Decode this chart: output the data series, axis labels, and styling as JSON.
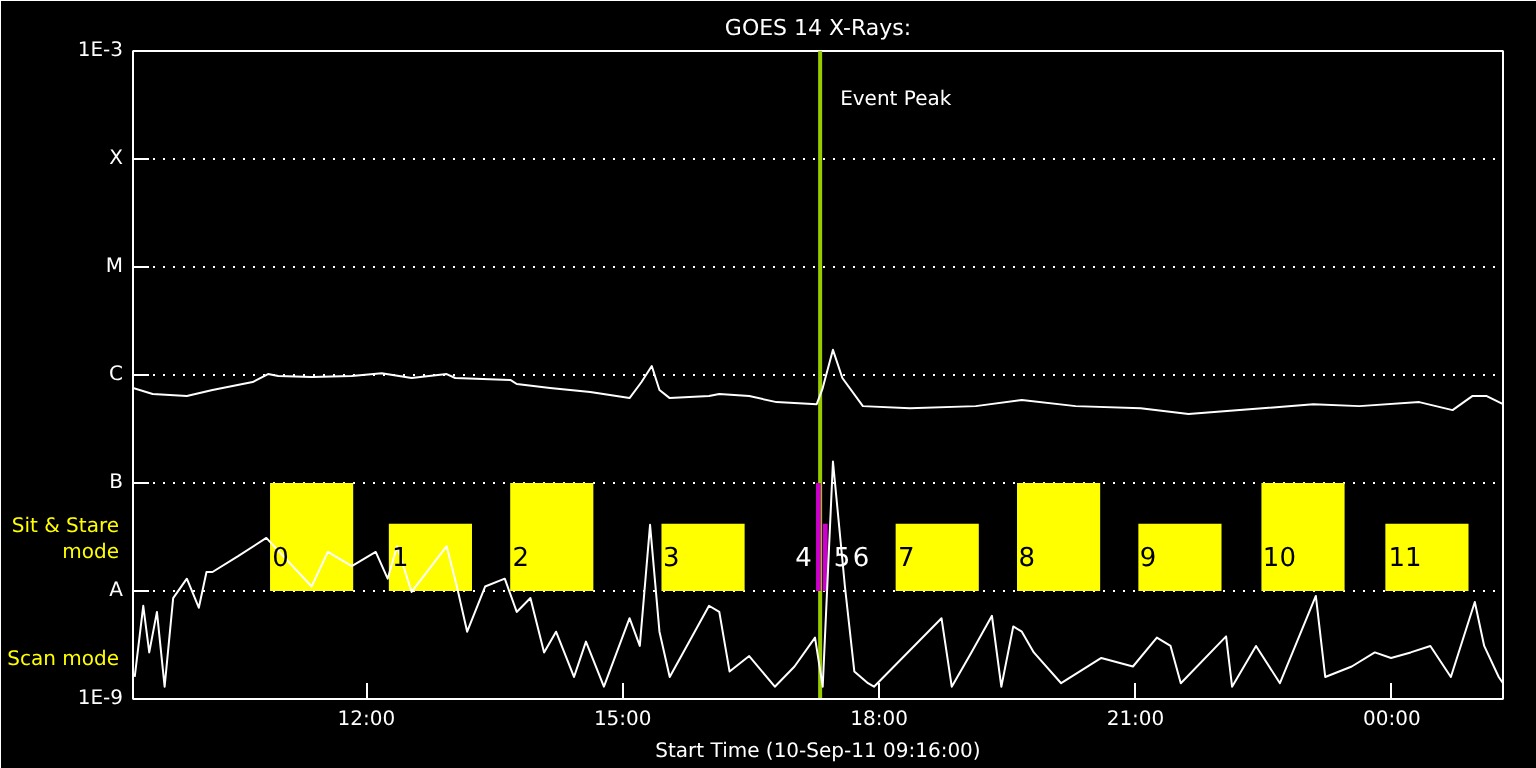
{
  "chart_data": {
    "type": "line",
    "title": "GOES 14 X-Rays:",
    "xlabel": "Start Time (10-Sep-11 09:16:00)",
    "log": "y",
    "grid": "y",
    "xlim": [
      9.27,
      25.3
    ],
    "xticks": [
      {
        "value": 12,
        "label": "12:00"
      },
      {
        "value": 15,
        "label": "15:00"
      },
      {
        "value": 18,
        "label": "18:00"
      },
      {
        "value": 21,
        "label": "21:00"
      },
      {
        "value": 24,
        "label": "00:00"
      }
    ],
    "ylim": [
      1e-09,
      0.001
    ],
    "yticks": [
      {
        "value": 1e-09,
        "label": "1E-9"
      },
      {
        "value": 1e-08,
        "label": "A"
      },
      {
        "value": 1e-07,
        "label": "B"
      },
      {
        "value": 1e-06,
        "label": "C"
      },
      {
        "value": 1e-05,
        "label": "M"
      },
      {
        "value": 0.0001,
        "label": "X"
      },
      {
        "value": 0.001,
        "label": "1E-3"
      }
    ],
    "series": [
      {
        "color": "#ffffff",
        "x": [
          9.27,
          9.5,
          9.9,
          10.2,
          10.67,
          10.85,
          10.97,
          11.36,
          11.83,
          12.18,
          12.53,
          12.94,
          13.04,
          13.69,
          13.76,
          14.15,
          14.62,
          15.08,
          15.22,
          15.34,
          15.43,
          15.55,
          16.01,
          16.13,
          16.48,
          16.8,
          17.27,
          17.34,
          17.46,
          17.57,
          17.81,
          18.36,
          19.13,
          19.67,
          20.3,
          21.06,
          21.62,
          22.22,
          23.08,
          23.62,
          24.32,
          24.71,
          24.94,
          25.11,
          25.3
        ],
        "values": [
          7.57e-07,
          6.66e-07,
          6.38e-07,
          7.26e-07,
          8.61e-07,
          1.02e-06,
          9.79e-07,
          9.58e-07,
          9.79e-07,
          1.04e-06,
          9.38e-07,
          1.02e-06,
          9.38e-07,
          8.98e-07,
          8.25e-07,
          7.57e-07,
          6.95e-07,
          6.11e-07,
          8.61e-07,
          1.21e-06,
          7.26e-07,
          6.11e-07,
          6.38e-07,
          6.66e-07,
          6.38e-07,
          5.61e-07,
          5.37e-07,
          7.57e-07,
          1.71e-06,
          9.38e-07,
          5.15e-07,
          4.93e-07,
          5.15e-07,
          5.86e-07,
          5.15e-07,
          4.93e-07,
          4.35e-07,
          4.73e-07,
          5.37e-07,
          5.15e-07,
          5.61e-07,
          4.73e-07,
          6.38e-07,
          6.38e-07,
          5.37e-07
        ]
      },
      {
        "color": "#ffffff",
        "x": [
          9.29,
          9.39,
          9.46,
          9.55,
          9.64,
          9.74,
          9.9,
          10.04,
          10.13,
          10.2,
          10.5,
          10.83,
          11.36,
          11.55,
          11.83,
          12.11,
          12.25,
          12.36,
          12.53,
          12.94,
          13.06,
          13.18,
          13.39,
          13.62,
          13.76,
          13.92,
          14.08,
          14.22,
          14.43,
          14.57,
          14.78,
          15.08,
          15.2,
          15.32,
          15.43,
          15.55,
          16.01,
          16.13,
          16.25,
          16.48,
          16.78,
          17.01,
          17.25,
          17.34,
          17.46,
          17.6,
          17.71,
          17.87,
          17.94,
          18.73,
          18.85,
          19.08,
          19.32,
          19.43,
          19.57,
          19.67,
          19.81,
          20.13,
          20.6,
          20.97,
          21.25,
          21.41,
          21.53,
          22.06,
          22.13,
          22.41,
          22.69,
          23.11,
          23.22,
          23.53,
          23.8,
          23.99,
          24.22,
          24.45,
          24.69,
          24.97,
          25.08,
          25.25,
          25.3
        ],
        "values": [
          1.6e-09,
          7.3e-09,
          2.7e-09,
          6.4e-09,
          1.3e-09,
          8.6e-09,
          1.3e-08,
          7e-09,
          1.5e-08,
          1.5e-08,
          2.1e-08,
          3.1e-08,
          1.1e-08,
          2.3e-08,
          1.7e-08,
          2.3e-08,
          1.3e-08,
          2.6e-08,
          9.8e-09,
          2.6e-08,
          1.1e-08,
          4.2e-09,
          1.1e-08,
          1.3e-08,
          6.4e-09,
          8.6e-09,
          2.7e-09,
          4.2e-09,
          1.6e-09,
          3.4e-09,
          1.3e-09,
          5.6e-09,
          3.1e-09,
          4.1e-08,
          4.2e-09,
          1.6e-09,
          7.3e-09,
          6.4e-09,
          1.8e-09,
          2.5e-09,
          1.3e-09,
          2e-09,
          3.7e-09,
          1.3e-09,
          1.58e-07,
          1.1e-08,
          1.8e-09,
          1.4e-09,
          1.3e-09,
          5.6e-09,
          1.3e-09,
          2.7e-09,
          5.9e-09,
          1.3e-09,
          4.7e-09,
          4.2e-09,
          2.7e-09,
          1.4e-09,
          2.4e-09,
          2e-09,
          3.7e-09,
          3.1e-09,
          1.4e-09,
          3.8e-09,
          1.3e-09,
          3.1e-09,
          1.4e-09,
          9e-09,
          1.6e-09,
          2e-09,
          2.7e-09,
          2.4e-09,
          2.7e-09,
          3.1e-09,
          1.6e-09,
          7.9e-09,
          3.1e-09,
          1.6e-09,
          1.4e-09
        ]
      },
      {
        "type": "bar",
        "color": "#ffff00",
        "x": [
          11.36,
          12.75,
          14.17,
          15.94,
          18.68,
          20.1,
          21.52,
          22.96,
          24.41
        ],
        "base": [
          1e-08,
          1e-08,
          1e-08,
          1e-08,
          1e-08,
          1e-08,
          1e-08,
          1e-08,
          1e-08
        ],
        "values": [
          9e-08,
          3.2e-08,
          9e-08,
          3.2e-08,
          3.2e-08,
          9e-08,
          3.2e-08,
          9e-08,
          3.2e-08
        ]
      },
      {
        "type": "bar",
        "color": "#cc00cc",
        "x": [
          17.29,
          17.37
        ],
        "base": [
          1e-08,
          1e-08
        ],
        "values": [
          9e-08,
          3.2e-08
        ]
      }
    ],
    "ref_lines": [
      {
        "axis": "x",
        "value": 17.31,
        "label": "Event Peak",
        "color": "#99cc00"
      }
    ],
    "annotations": [
      "Sit & Stare mode",
      "Scan mode",
      {
        "text": "0",
        "x": 10.9,
        "y": 2.1e-08
      },
      {
        "text": "1",
        "x": 12.3,
        "y": 2.1e-08
      },
      {
        "text": "2",
        "x": 13.71,
        "y": 2.1e-08
      },
      {
        "text": "3",
        "x": 15.47,
        "y": 2.1e-08
      },
      {
        "text": "4",
        "x": 17.26,
        "y": 2.1e-08
      },
      {
        "text": "5",
        "x": 17.4,
        "y": 2.1e-08
      },
      {
        "text": "6",
        "x": 17.62,
        "y": 2.1e-08
      },
      {
        "text": "7",
        "x": 18.22,
        "y": 2.1e-08
      },
      {
        "text": "8",
        "x": 19.63,
        "y": 2.1e-08
      },
      {
        "text": "9",
        "x": 21.05,
        "y": 2.1e-08
      },
      {
        "text": "10",
        "x": 22.49,
        "y": 2.1e-08
      },
      {
        "text": "11",
        "x": 23.96,
        "y": 2.1e-08
      }
    ]
  }
}
